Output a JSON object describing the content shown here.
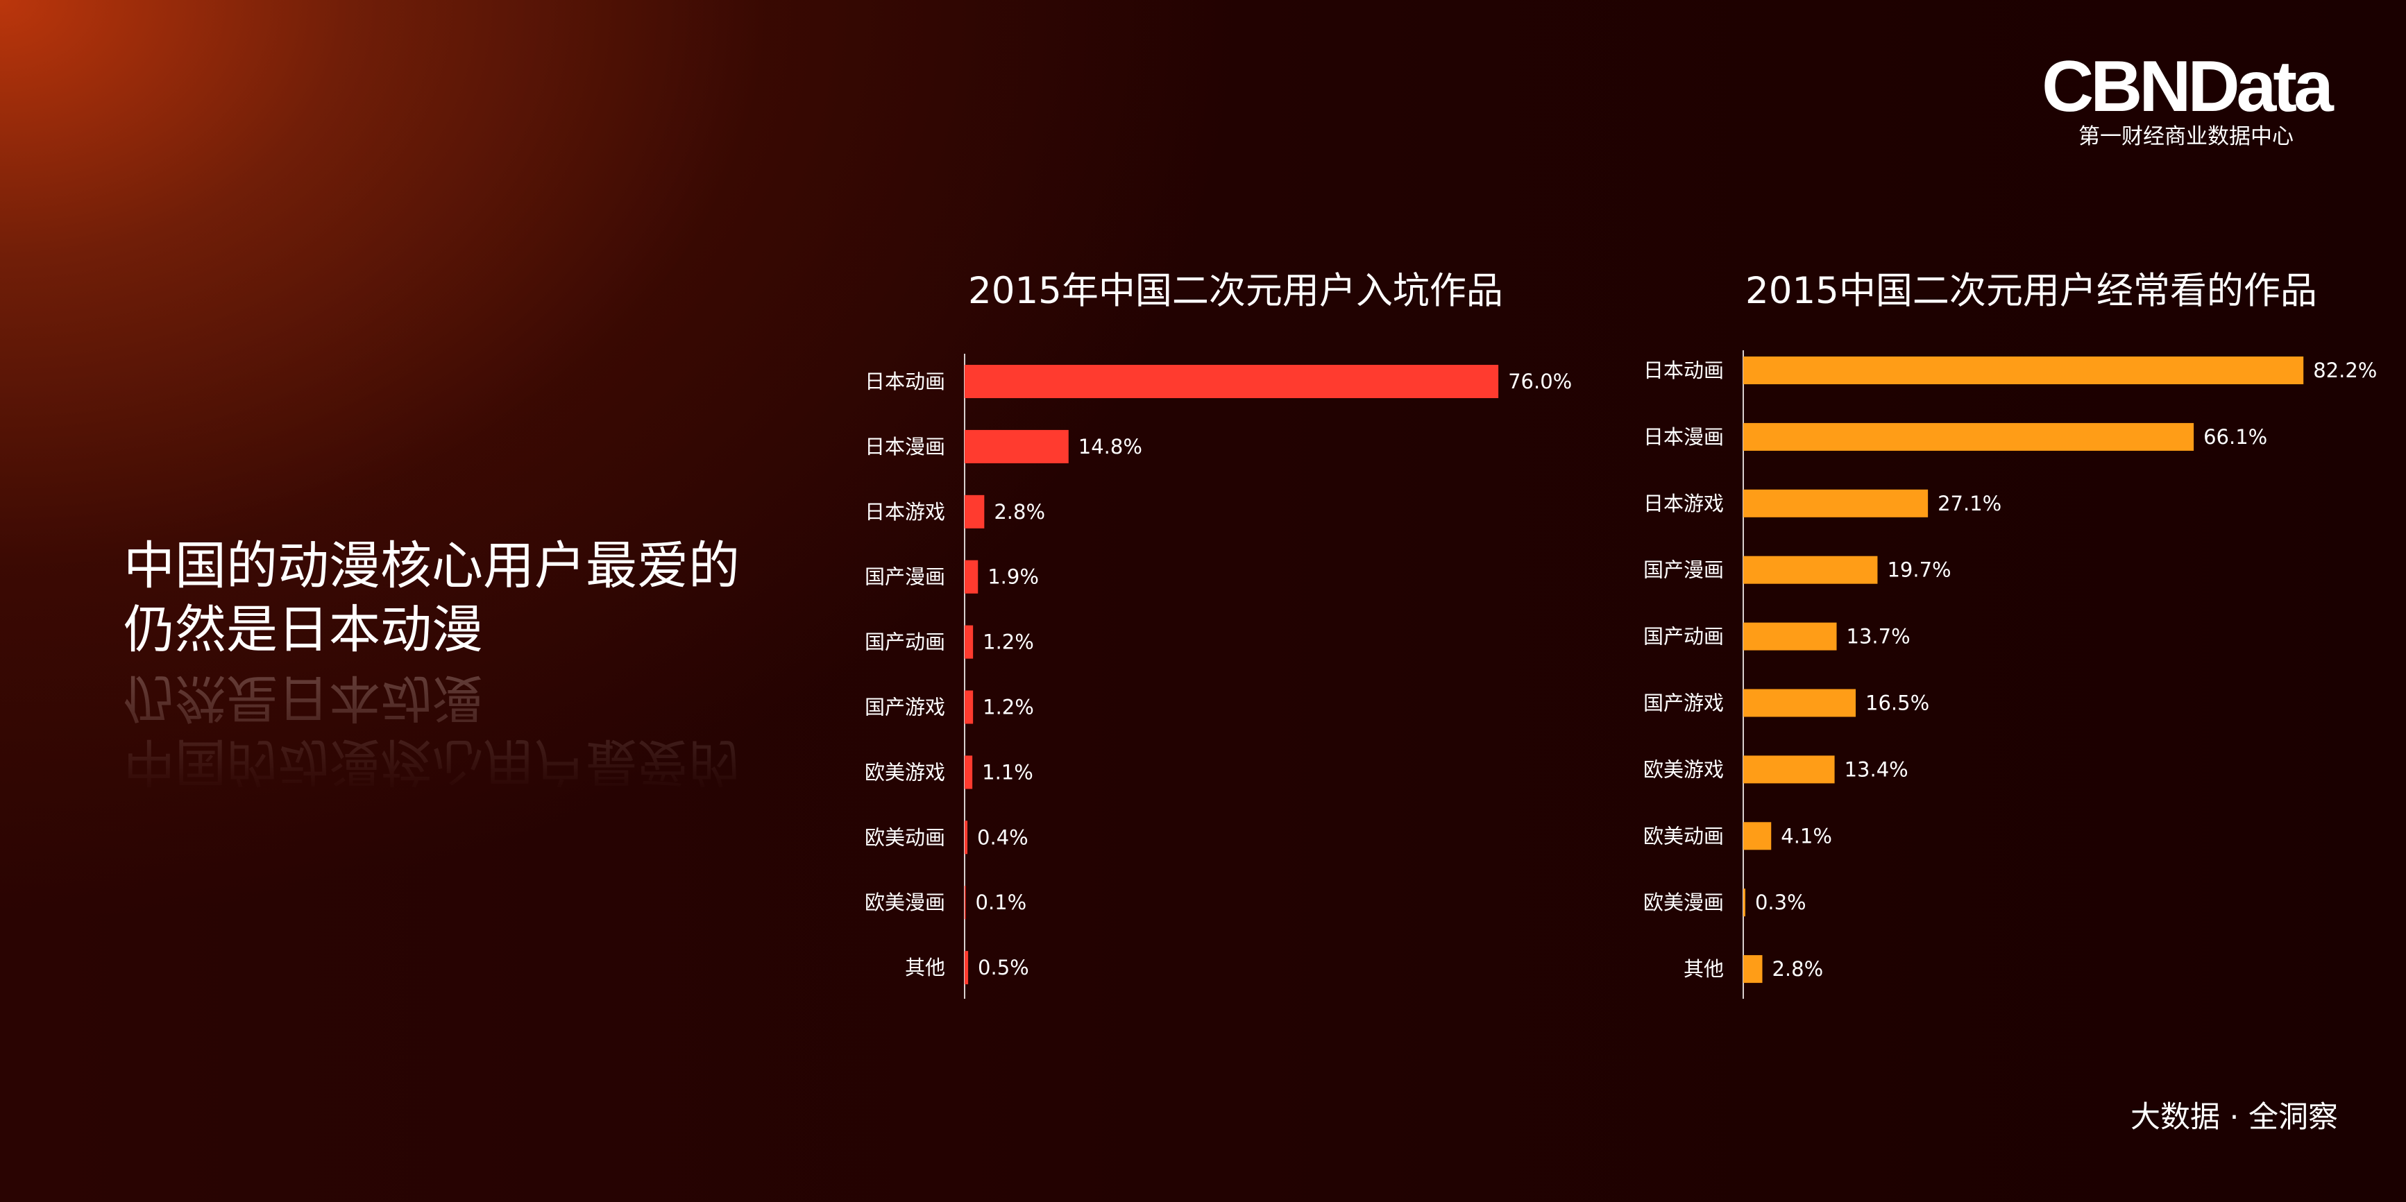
{
  "brand": {
    "logo_text": "CBNData",
    "logo_subtitle": "第一财经商业数据中心"
  },
  "headline": {
    "line1": "中国的动漫核心用户最爱的",
    "line2": "仍然是日本动漫"
  },
  "footer": {
    "tagline": "大数据 · 全洞察"
  },
  "colors": {
    "left_bars": "#ff3b2f",
    "right_bars": "#ff9d17",
    "axis": "#d8d0cf"
  },
  "chart_data": [
    {
      "type": "bar",
      "orientation": "horizontal",
      "title": "2015年中国二次元用户入坑作品",
      "categories": [
        "日本动画",
        "日本漫画",
        "日本游戏",
        "国产漫画",
        "国产动画",
        "国产游戏",
        "欧美游戏",
        "欧美动画",
        "欧美漫画",
        "其他"
      ],
      "values": [
        76.0,
        14.8,
        2.8,
        1.9,
        1.2,
        1.2,
        1.1,
        0.4,
        0.1,
        0.5
      ],
      "value_labels": [
        "76.0%",
        "14.8%",
        "2.8%",
        "1.9%",
        "1.2%",
        "1.2%",
        "1.1%",
        "0.4%",
        "0.1%",
        "0.5%"
      ],
      "xlim": [
        0,
        100
      ],
      "grid": false,
      "color": "#ff3b2f"
    },
    {
      "type": "bar",
      "orientation": "horizontal",
      "title": "2015中国二次元用户经常看的作品",
      "categories": [
        "日本动画",
        "日本漫画",
        "日本游戏",
        "国产漫画",
        "国产动画",
        "国产游戏",
        "欧美游戏",
        "欧美动画",
        "欧美漫画",
        "其他"
      ],
      "values": [
        82.2,
        66.1,
        27.1,
        19.7,
        13.7,
        16.5,
        13.4,
        4.1,
        0.3,
        2.8
      ],
      "value_labels": [
        "82.2%",
        "66.1%",
        "27.1%",
        "19.7%",
        "13.7%",
        "16.5%",
        "13.4%",
        "4.1%",
        "0.3%",
        "2.8%"
      ],
      "xlim": [
        0,
        100
      ],
      "grid": false,
      "color": "#ff9d17"
    }
  ]
}
